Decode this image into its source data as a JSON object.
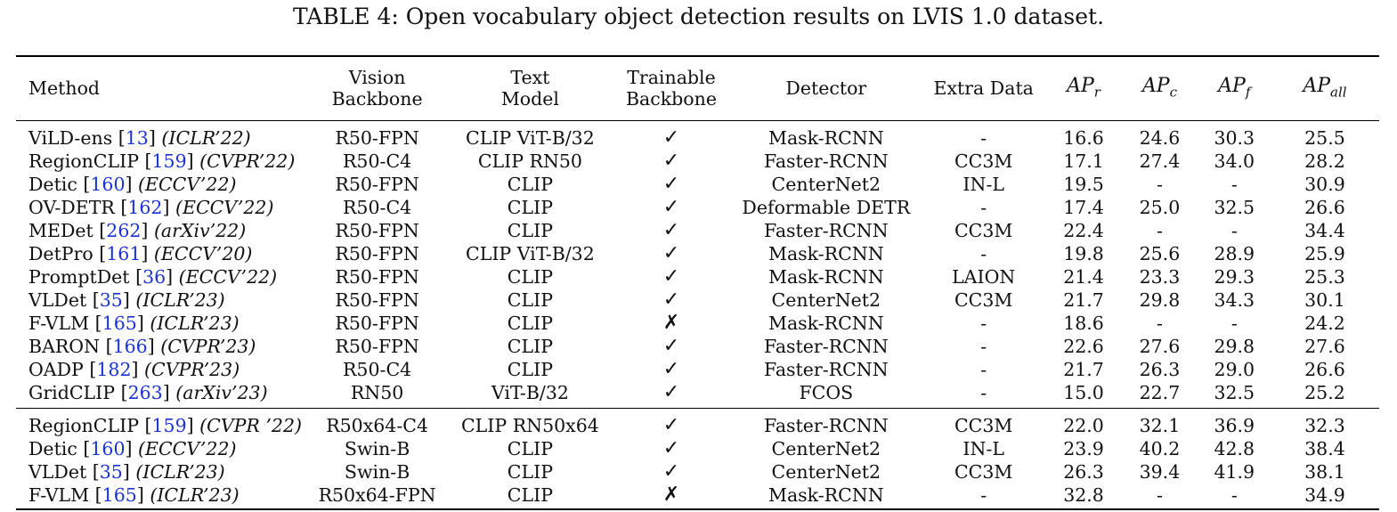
{
  "caption": "TABLE 4: Open vocabulary object detection results on LVIS 1.0 dataset.",
  "header": {
    "method": "Method",
    "vision_backbone": [
      "Vision",
      "Backbone"
    ],
    "text_model": [
      "Text",
      "Model"
    ],
    "trainable_backbone": [
      "Trainable",
      "Backbone"
    ],
    "detector": "Detector",
    "extra_data": "Extra Data",
    "ap_r": {
      "base": "AP",
      "sub": "r"
    },
    "ap_c": {
      "base": "AP",
      "sub": "c"
    },
    "ap_f": {
      "base": "AP",
      "sub": "f"
    },
    "ap_all": {
      "base": "AP",
      "sub": "all"
    }
  },
  "groups": [
    [
      {
        "name": "ViLD-ens",
        "ref": "13",
        "venue": "(ICLR’22)",
        "vision": "R50-FPN",
        "text": "CLIP ViT-B/32",
        "trainable": "✓",
        "detector": "Mask-RCNN",
        "extra": "-",
        "apr": "16.6",
        "apc": "24.6",
        "apf": "30.3",
        "apall": "25.5"
      },
      {
        "name": "RegionCLIP",
        "ref": "159",
        "venue": "(CVPR’22)",
        "vision": "R50-C4",
        "text": "CLIP RN50",
        "trainable": "✓",
        "detector": "Faster-RCNN",
        "extra": "CC3M",
        "apr": "17.1",
        "apc": "27.4",
        "apf": "34.0",
        "apall": "28.2"
      },
      {
        "name": "Detic",
        "ref": "160",
        "venue": "(ECCV’22)",
        "vision": "R50-FPN",
        "text": "CLIP",
        "trainable": "✓",
        "detector": "CenterNet2",
        "extra": "IN-L",
        "apr": "19.5",
        "apc": "-",
        "apf": "-",
        "apall": "30.9"
      },
      {
        "name": "OV-DETR",
        "ref": "162",
        "venue": "(ECCV’22)",
        "vision": "R50-C4",
        "text": "CLIP",
        "trainable": "✓",
        "detector": "Deformable DETR",
        "extra": "-",
        "apr": "17.4",
        "apc": "25.0",
        "apf": "32.5",
        "apall": "26.6"
      },
      {
        "name": "MEDet",
        "ref": "262",
        "venue": "(arXiv’22)",
        "vision": "R50-FPN",
        "text": "CLIP",
        "trainable": "✓",
        "detector": "Faster-RCNN",
        "extra": "CC3M",
        "apr": "22.4",
        "apc": "-",
        "apf": "-",
        "apall": "34.4"
      },
      {
        "name": "DetPro",
        "ref": "161",
        "venue": "(ECCV’20)",
        "vision": "R50-FPN",
        "text": "CLIP ViT-B/32",
        "trainable": "✓",
        "detector": "Mask-RCNN",
        "extra": "-",
        "apr": "19.8",
        "apc": "25.6",
        "apf": "28.9",
        "apall": "25.9"
      },
      {
        "name": "PromptDet",
        "ref": "36",
        "venue": "(ECCV’22)",
        "vision": "R50-FPN",
        "text": "CLIP",
        "trainable": "✓",
        "detector": "Mask-RCNN",
        "extra": "LAION",
        "apr": "21.4",
        "apc": "23.3",
        "apf": "29.3",
        "apall": "25.3"
      },
      {
        "name": "VLDet",
        "ref": "35",
        "venue": "(ICLR’23)",
        "vision": "R50-FPN",
        "text": "CLIP",
        "trainable": "✓",
        "detector": "CenterNet2",
        "extra": "CC3M",
        "apr": "21.7",
        "apc": "29.8",
        "apf": "34.3",
        "apall": "30.1"
      },
      {
        "name": "F-VLM",
        "ref": "165",
        "venue": "(ICLR’23)",
        "vision": "R50-FPN",
        "text": "CLIP",
        "trainable": "✗",
        "detector": "Mask-RCNN",
        "extra": "-",
        "apr": "18.6",
        "apc": "-",
        "apf": "-",
        "apall": "24.2"
      },
      {
        "name": "BARON",
        "ref": "166",
        "venue": "(CVPR’23)",
        "vision": "R50-FPN",
        "text": "CLIP",
        "trainable": "✓",
        "detector": "Faster-RCNN",
        "extra": "-",
        "apr": "22.6",
        "apc": "27.6",
        "apf": "29.8",
        "apall": "27.6"
      },
      {
        "name": "OADP",
        "ref": "182",
        "venue": "(CVPR’23)",
        "vision": "R50-C4",
        "text": "CLIP",
        "trainable": "✓",
        "detector": "Faster-RCNN",
        "extra": "-",
        "apr": "21.7",
        "apc": "26.3",
        "apf": "29.0",
        "apall": "26.6"
      },
      {
        "name": "GridCLIP",
        "ref": "263",
        "venue": "(arXiv’23)",
        "vision": "RN50",
        "text": "ViT-B/32",
        "trainable": "✓",
        "detector": "FCOS",
        "extra": "-",
        "apr": "15.0",
        "apc": "22.7",
        "apf": "32.5",
        "apall": "25.2"
      }
    ],
    [
      {
        "name": "RegionCLIP",
        "ref": "159",
        "venue": "(CVPR ’22)",
        "vision": "R50x64-C4",
        "text": "CLIP RN50x64",
        "trainable": "✓",
        "detector": "Faster-RCNN",
        "extra": "CC3M",
        "apr": "22.0",
        "apc": "32.1",
        "apf": "36.9",
        "apall": "32.3"
      },
      {
        "name": "Detic",
        "ref": "160",
        "venue": "(ECCV’22)",
        "vision": "Swin-B",
        "text": "CLIP",
        "trainable": "✓",
        "detector": "CenterNet2",
        "extra": "IN-L",
        "apr": "23.9",
        "apc": "40.2",
        "apf": "42.8",
        "apall": "38.4"
      },
      {
        "name": "VLDet",
        "ref": "35",
        "venue": "(ICLR’23)",
        "vision": "Swin-B",
        "text": "CLIP",
        "trainable": "✓",
        "detector": "CenterNet2",
        "extra": "CC3M",
        "apr": "26.3",
        "apc": "39.4",
        "apf": "41.9",
        "apall": "38.1"
      },
      {
        "name": "F-VLM",
        "ref": "165",
        "venue": "(ICLR’23)",
        "vision": "R50x64-FPN",
        "text": "CLIP",
        "trainable": "✗",
        "detector": "Mask-RCNN",
        "extra": "-",
        "apr": "32.8",
        "apc": "-",
        "apf": "-",
        "apall": "34.9"
      }
    ]
  ]
}
